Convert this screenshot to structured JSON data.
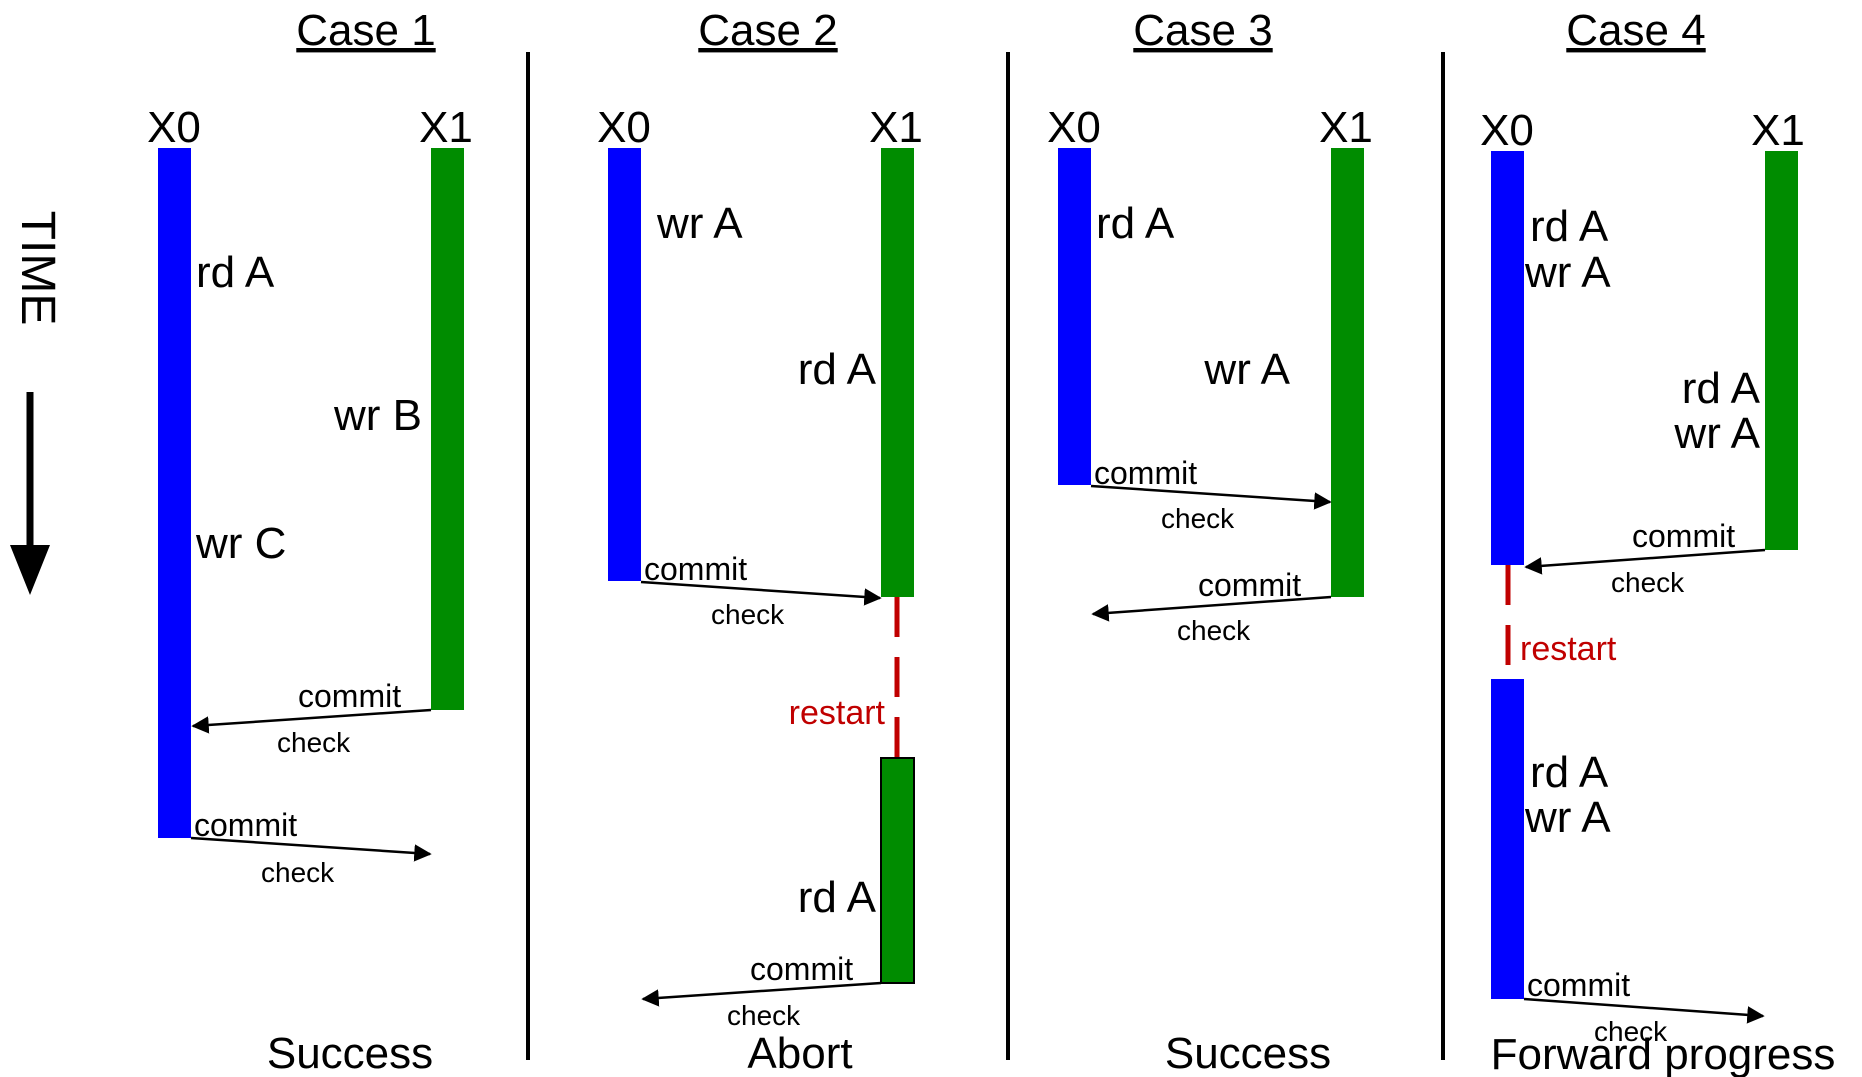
{
  "time_label": "TIME",
  "colors": {
    "x0_bar": "#0000ff",
    "x1_bar": "#008c00",
    "restart": "#c00000",
    "divider": "#000000",
    "arrow": "#000000"
  },
  "cases": [
    {
      "title": "Case 1",
      "x0": "X0",
      "x1": "X1",
      "ops": [
        "rd A",
        "wr B",
        "wr C"
      ],
      "commits": [
        "commit",
        "commit"
      ],
      "checks": [
        "check",
        "check"
      ],
      "outcome": "Success"
    },
    {
      "title": "Case 2",
      "x0": "X0",
      "x1": "X1",
      "ops": [
        "wr A",
        "rd A",
        "rd A"
      ],
      "commits": [
        "commit",
        "commit"
      ],
      "checks": [
        "check",
        "check"
      ],
      "restart": "restart",
      "outcome": "Abort"
    },
    {
      "title": "Case 3",
      "x0": "X0",
      "x1": "X1",
      "ops": [
        "rd A",
        "wr A"
      ],
      "commits": [
        "commit",
        "commit"
      ],
      "checks": [
        "check",
        "check"
      ],
      "outcome": "Success"
    },
    {
      "title": "Case 4",
      "x0": "X0",
      "x1": "X1",
      "ops": [
        "rd A",
        "wr A",
        "rd A",
        "wr A",
        "rd A",
        "wr A"
      ],
      "commits": [
        "commit",
        "commit"
      ],
      "checks": [
        "check",
        "check"
      ],
      "restart": "restart",
      "outcome": "Forward progress"
    }
  ]
}
